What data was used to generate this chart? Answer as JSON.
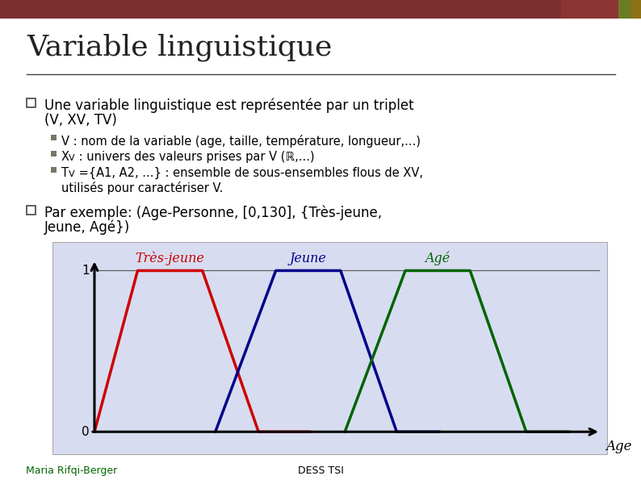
{
  "title": "Variable linguistique",
  "title_color": "#2B2B2B",
  "background_color": "#FFFFFF",
  "header_left_color": "#7B3030",
  "header_mid_color": "#8B3535",
  "header_right1_color": "#6B7B23",
  "header_right2_color": "#8B7014",
  "bullet1_text1": "Une variable linguistique est représentée par un triplet",
  "bullet1_text2": "(V, XV, TV)",
  "sub1": "V : nom de la variable (age, taille, température, longueur,...)",
  "sub2_pre": "X",
  "sub2_sub": "V",
  "sub2_post": " : univers des valeurs prises par V (ℝ,...)",
  "sub3_pre": "T",
  "sub3_sub": "V",
  "sub3_post": " ={A1, A2, ...} : ensemble de sous-ensembles flous de XV,",
  "sub3_line2": "utilisés pour caractériser V.",
  "bullet2_text1": "Par exemple: (Age-Personne, [0,130], {Très-jeune,",
  "bullet2_text2": "Jeune, Agé})",
  "footer_left": "Maria Rifqi-Berger",
  "footer_center": "DESS TSI",
  "chart_bg": "#D8DCF0",
  "trapezoid_red": {
    "name": "Très-jeune",
    "color": "#CC0000",
    "x": [
      0,
      10,
      25,
      38,
      50
    ],
    "y": [
      0,
      1,
      1,
      0,
      0
    ]
  },
  "trapezoid_blue": {
    "name": "Jeune",
    "color": "#00008B",
    "x": [
      28,
      42,
      57,
      70,
      80
    ],
    "y": [
      0,
      1,
      1,
      0,
      0
    ]
  },
  "trapezoid_green": {
    "name": "Agé",
    "color": "#006400",
    "x": [
      58,
      72,
      87,
      100,
      110
    ],
    "y": [
      0,
      1,
      1,
      0,
      0
    ]
  },
  "x_label": "Age",
  "xlim": [
    0,
    115
  ],
  "ylim": [
    0,
    1.0
  ]
}
